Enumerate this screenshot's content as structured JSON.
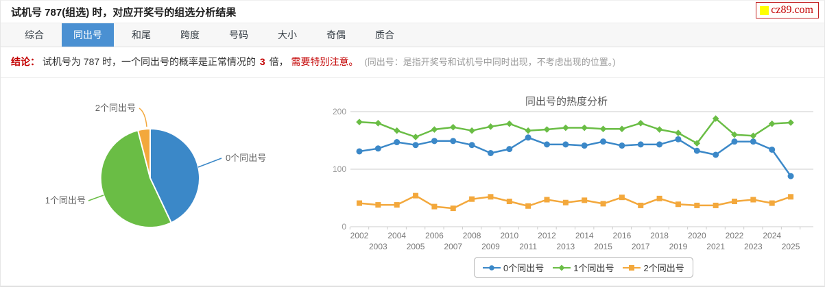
{
  "header": {
    "title": "试机号 787(组选) 时，对应开奖号的组选分析结果"
  },
  "logo": {
    "text": "cz89.com",
    "square_color": "#ffff00",
    "text_color": "#c30000"
  },
  "tabs": [
    {
      "id": "composite",
      "label": "综合",
      "active": false
    },
    {
      "id": "same-number",
      "label": "同出号",
      "active": true
    },
    {
      "id": "sum-tail",
      "label": "和尾",
      "active": false
    },
    {
      "id": "span",
      "label": "跨度",
      "active": false
    },
    {
      "id": "numbers",
      "label": "号码",
      "active": false
    },
    {
      "id": "big-small",
      "label": "大小",
      "active": false
    },
    {
      "id": "odd-even",
      "label": "奇偶",
      "active": false
    },
    {
      "id": "prime-composite",
      "label": "质合",
      "active": false
    }
  ],
  "conclusion": {
    "prefix": "结论：",
    "text_before": "试机号为 787 时，一个同出号的概率是正常情况的",
    "multiplier": "3",
    "text_after": "倍，",
    "warning": "需要特别注意。",
    "note": "(同出号：是指开奖号和试机号中同时出现，不考虑出现的位置。)"
  },
  "colors": {
    "tab_active": "#4a90d2",
    "alert_red": "#c30000",
    "series_blue": "#3b88c8",
    "series_green": "#6abd45",
    "series_orange": "#f3a83c",
    "grid_gray": "#cccccc"
  },
  "chart_data": [
    {
      "type": "pie",
      "title": "",
      "start_angle": "top",
      "direction": "clockwise",
      "slices": [
        {
          "label": "0个同出号",
          "percent": 43,
          "color": "#3b88c8"
        },
        {
          "label": "1个同出号",
          "percent": 53,
          "color": "#6abd45"
        },
        {
          "label": "2个同出号",
          "percent": 4,
          "color": "#f3a83c"
        }
      ]
    },
    {
      "type": "line",
      "title": "同出号的热度分析",
      "xlabel": "",
      "ylabel": "",
      "ylim": [
        0,
        220
      ],
      "yticks": [
        0,
        100,
        200
      ],
      "grid": true,
      "legend_position": "bottom",
      "x": [
        2002,
        2003,
        2004,
        2005,
        2006,
        2007,
        2008,
        2009,
        2010,
        2011,
        2012,
        2013,
        2014,
        2015,
        2016,
        2017,
        2018,
        2019,
        2020,
        2021,
        2022,
        2023,
        2024,
        2025
      ],
      "series": [
        {
          "name": "0个同出号",
          "color": "#3b88c8",
          "marker": "circle",
          "values": [
            131,
            136,
            147,
            142,
            149,
            149,
            142,
            128,
            135,
            155,
            143,
            143,
            141,
            148,
            141,
            143,
            143,
            152,
            132,
            125,
            148,
            148,
            134,
            88
          ]
        },
        {
          "name": "1个同出号",
          "color": "#6abd45",
          "marker": "diamond",
          "values": [
            182,
            180,
            167,
            156,
            169,
            173,
            167,
            174,
            179,
            167,
            169,
            172,
            172,
            170,
            170,
            180,
            169,
            163,
            145,
            188,
            160,
            158,
            179,
            181
          ]
        },
        {
          "name": "2个同出号",
          "color": "#f3a83c",
          "marker": "square",
          "values": [
            41,
            38,
            38,
            54,
            35,
            32,
            48,
            52,
            44,
            36,
            47,
            42,
            46,
            40,
            51,
            37,
            49,
            39,
            37,
            37,
            44,
            47,
            41,
            52
          ]
        }
      ]
    }
  ]
}
